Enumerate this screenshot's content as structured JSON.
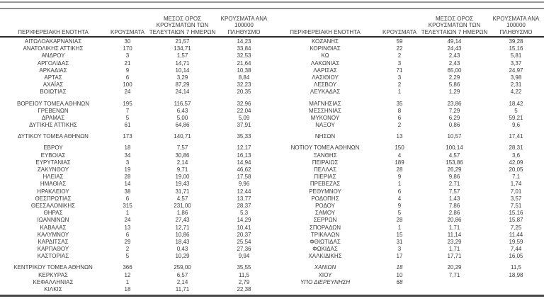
{
  "document": {
    "type": "regional-covid-cases-table",
    "language": "el"
  },
  "colors": {
    "text": "#3c3c3c",
    "top_rule": "#979797",
    "header_rule": "#2a2a2a",
    "bottom_rule": "#474747",
    "background": "#ffffff"
  },
  "columns": {
    "region": "ΠΕΡΙΦΕΡΕΙΑΚΗ ΕΝΟΤΗΤΑ",
    "cases": "ΚΡΟΥΣΜΑΤΑ",
    "avg7_lines": [
      "ΜΕΣΟΣ ΟΡΟΣ",
      "ΚΡΟΥΣΜΑΤΩΝ ΤΩΝ",
      "ΤΕΛΕΥΤΑΙΩΝ 7 ΗΜΕΡΩΝ"
    ],
    "per100k_lines": [
      "ΚΡΟΥΣΜΑΤΑ ΑΝΑ 100000",
      "ΠΛΗΘΥΣΜΟ"
    ]
  },
  "tables": {
    "left": {
      "groups": [
        [
          [
            "ΑΙΤΩΛΟΑΚΑΡΝΑΝΙΑΣ",
            "30",
            "21,57",
            "14,23"
          ],
          [
            "ΑΝΑΤΟΛΙΚΗΣ ΑΤΤΙΚΗΣ",
            "170",
            "134,71",
            "33,84"
          ],
          [
            "ΑΝΔΡΟΥ",
            "3",
            "1,57",
            "32,53"
          ],
          [
            "ΑΡΓΟΛΙΔΑΣ",
            "21",
            "14,71",
            "21,64"
          ],
          [
            "ΑΡΚΑΔΙΑΣ",
            "9",
            "10,14",
            "10,38"
          ],
          [
            "ΑΡΤΑΣ",
            "6",
            "3,29",
            "8,84"
          ],
          [
            "ΑΧΑΪΑΣ",
            "100",
            "87,29",
            "32,23"
          ],
          [
            "ΒΟΙΩΤΙΑΣ",
            "24",
            "24,14",
            "20,35"
          ]
        ],
        [
          [
            "ΒΟΡΕΙΟΥ ΤΟΜΕΑ ΑΘΗΝΩΝ",
            "195",
            "116,57",
            "32,96"
          ],
          [
            "ΓΡΕΒΕΝΩΝ",
            "7",
            "6,43",
            "22,04"
          ],
          [
            "ΔΡΑΜΑΣ",
            "5",
            "5,00",
            "5,09"
          ],
          [
            "ΔΥΤΙΚΗΣ ΑΤΤΙΚΗΣ",
            "61",
            "64,86",
            "37,91"
          ]
        ],
        [
          [
            "ΔΥΤΙΚΟΥ ΤΟΜΕΑ ΑΘΗΝΩΝ",
            "173",
            "140,71",
            "35,33"
          ]
        ],
        [
          [
            "ΕΒΡΟΥ",
            "18",
            "7,57",
            "12,17"
          ],
          [
            "ΕΥΒΟΙΑΣ",
            "34",
            "30,86",
            "16,13"
          ],
          [
            "ΕΥΡΥΤΑΝΙΑΣ",
            "3",
            "2,14",
            "14,94"
          ],
          [
            "ΖΑΚΥΝΘΟΥ",
            "19",
            "9,71",
            "46,62"
          ],
          [
            "ΗΛΕΙΑΣ",
            "28",
            "19,00",
            "17,58"
          ],
          [
            "ΗΜΑΘΙΑΣ",
            "14",
            "19,43",
            "9,96"
          ],
          [
            "ΗΡΑΚΛΕΙΟΥ",
            "38",
            "31,71",
            "12,44"
          ],
          [
            "ΘΕΣΠΡΩΤΙΑΣ",
            "6",
            "4,57",
            "13,77"
          ],
          [
            "ΘΕΣΣΑΛΟΝΙΚΗΣ",
            "315",
            "231,00",
            "28,37"
          ],
          [
            "ΘΗΡΑΣ",
            "1",
            "1,86",
            "5,3"
          ],
          [
            "ΙΩΑΝΝΙΝΩΝ",
            "24",
            "27,43",
            "14,29"
          ],
          [
            "ΚΑΒΑΛΑΣ",
            "13",
            "12,71",
            "10,41"
          ],
          [
            "ΚΑΛΥΜΝΟΥ",
            "6",
            "10,86",
            "20,37"
          ],
          [
            "ΚΑΡΔΙΤΣΑΣ",
            "29",
            "18,43",
            "25,54"
          ],
          [
            "ΚΑΡΠΑΘΟΥ",
            "2",
            "0,43",
            "27,36"
          ],
          [
            "ΚΑΣΤΟΡΙΑΣ",
            "5",
            "10,29",
            "9,94"
          ]
        ],
        [
          [
            "ΚΕΝΤΡΙΚΟΥ ΤΟΜΕΑ ΑΘΗΝΩΝ",
            "366",
            "259,00",
            "35,55"
          ],
          [
            "ΚΕΡΚΥΡΑΣ",
            "12",
            "6,57",
            "11,5"
          ],
          [
            "ΚΕΦΑΛΛΗΝΙΑΣ",
            "1",
            "2,14",
            "2,79"
          ],
          [
            "ΚΙΛΚΙΣ",
            "18",
            "11,71",
            "22,38"
          ]
        ]
      ]
    },
    "right": {
      "groups": [
        [
          [
            "ΚΟΖΑΝΗΣ",
            "59",
            "49,14",
            "39,28"
          ],
          [
            "ΚΟΡΙΝΘΙΑΣ",
            "22",
            "24,43",
            "15,16"
          ],
          [
            "ΚΩ",
            "2",
            "2,43",
            "5,81"
          ],
          [
            "ΛΑΚΩΝΙΑΣ",
            "3",
            "2,43",
            "3,37"
          ],
          [
            "ΛΑΡΙΣΑΣ",
            "71",
            "65,00",
            "24,97"
          ],
          [
            "ΛΑΣΙΘΙΟΥ",
            "3",
            "2,29",
            "3,98"
          ],
          [
            "ΛΕΣΒΟΥ",
            "2",
            "5,86",
            "2,31"
          ],
          [
            "ΛΕΥΚΑΔΑΣ",
            "1",
            "1,29",
            "4,22"
          ]
        ],
        [
          [
            "ΜΑΓΝΗΣΙΑΣ",
            "35",
            "23,86",
            "18,42"
          ],
          [
            "ΜΕΣΣΗΝΙΑΣ",
            "8",
            "7,29",
            "5"
          ],
          [
            "ΜΥΚΟΝΟΥ",
            "6",
            "6,29",
            "59,21"
          ],
          [
            "ΝΑΞΟΥ",
            "2",
            "0,86",
            "9,6"
          ]
        ],
        [
          [
            "ΝΗΣΩΝ",
            "13",
            "10,57",
            "17,41"
          ]
        ],
        [
          [
            "ΝΟΤΙΟΥ ΤΟΜΕΑ ΑΘΗΝΩΝ",
            "150",
            "100,14",
            "28,31"
          ],
          [
            "ΞΑΝΘΗΣ",
            "4",
            "4,57",
            "3,6"
          ],
          [
            "ΠΕΙΡΑΙΩΣ",
            "189",
            "153,86",
            "42,09"
          ],
          [
            "ΠΕΛΛΑΣ",
            "28",
            "26,29",
            "20,05"
          ],
          [
            "ΠΙΕΡΙΑΣ",
            "9",
            "9,86",
            "7,1"
          ],
          [
            "ΠΡΕΒΕΖΑΣ",
            "1",
            "2,71",
            "1,74"
          ],
          [
            "ΡΕΘΥΜΝΟΥ",
            "6",
            "7,57",
            "7,01"
          ],
          [
            "ΡΟΔΟΠΗΣ",
            "4",
            "1,43",
            "3,57"
          ],
          [
            "ΡΟΔΟΥ",
            "9",
            "7,86",
            "7,51"
          ],
          [
            "ΣΑΜΟΥ",
            "5",
            "2,86",
            "15,16"
          ],
          [
            "ΣΕΡΡΩΝ",
            "28",
            "20,86",
            "15,87"
          ],
          [
            "ΣΠΟΡΑΔΩΝ",
            "1",
            "1,71",
            "7,25"
          ],
          [
            "ΤΡΙΚΑΛΩΝ",
            "15",
            "11,14",
            "11,44"
          ],
          [
            "ΦΘΙΩΤΙΔΑΣ",
            "31",
            "23,29",
            "19,59"
          ],
          [
            "ΦΩΚΙΔΑΣ",
            "3",
            "1,71",
            "7,44"
          ],
          [
            "ΧΑΛΚΙΔΙΚΗΣ",
            "17",
            "17,71",
            "16,05"
          ]
        ],
        [
          [
            "ΧΑΝΙΩΝ",
            "18",
            "20,29",
            "11,5",
            "italic:rc"
          ],
          [
            "ΧΙΟΥ",
            "10",
            "7,71",
            "18,98"
          ],
          [
            "ΥΠΟ ΔΙΕΡΕΥΝΗΣΗ",
            "68",
            "",
            "",
            "italic:all"
          ]
        ]
      ]
    }
  }
}
